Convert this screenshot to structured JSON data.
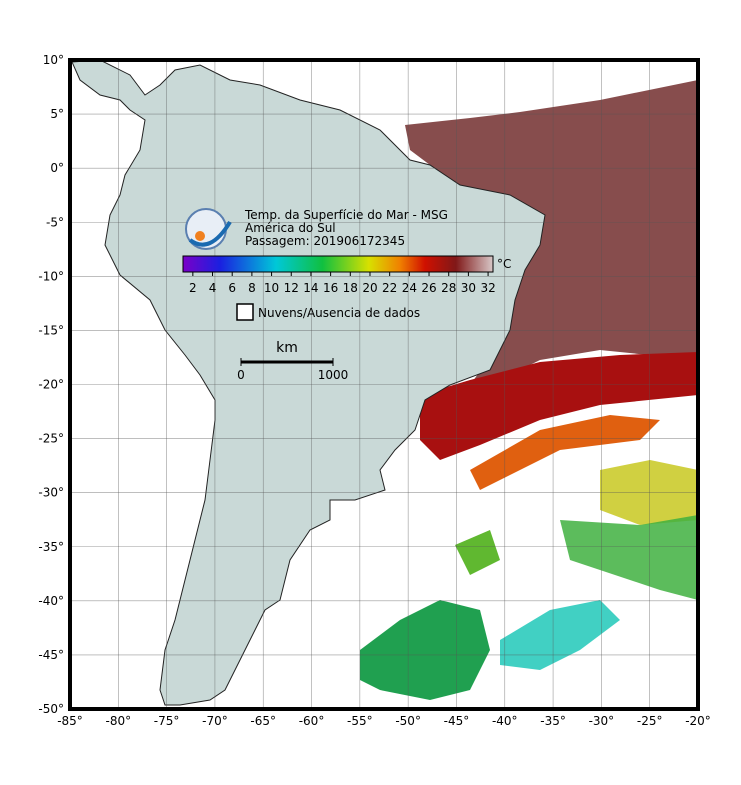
{
  "map": {
    "title_lines": [
      "Temp. da Superfície do Mar - MSG",
      "América do Sul",
      "Passagem: 201906172345"
    ],
    "xlim": [
      -85,
      -20
    ],
    "ylim": [
      -50,
      10
    ],
    "xticks": [
      {
        "value": -85,
        "label": "-85°"
      },
      {
        "value": -80,
        "label": "-80°"
      },
      {
        "value": -75,
        "label": "-75°"
      },
      {
        "value": -70,
        "label": "-70°"
      },
      {
        "value": -65,
        "label": "-65°"
      },
      {
        "value": -60,
        "label": "-60°"
      },
      {
        "value": -55,
        "label": "-55°"
      },
      {
        "value": -50,
        "label": "-50°"
      },
      {
        "value": -45,
        "label": "-45°"
      },
      {
        "value": -40,
        "label": "-40°"
      },
      {
        "value": -35,
        "label": "-35°"
      },
      {
        "value": -30,
        "label": "-30°"
      },
      {
        "value": -25,
        "label": "-25°"
      },
      {
        "value": -20,
        "label": "-20°"
      }
    ],
    "yticks": [
      {
        "value": 10,
        "label": "10°"
      },
      {
        "value": 5,
        "label": "5°"
      },
      {
        "value": 0,
        "label": "0°"
      },
      {
        "value": -5,
        "label": "-5°"
      },
      {
        "value": -10,
        "label": "-10°"
      },
      {
        "value": -15,
        "label": "-15°"
      },
      {
        "value": -20,
        "label": "-20°"
      },
      {
        "value": -25,
        "label": "-25°"
      },
      {
        "value": -30,
        "label": "-30°"
      },
      {
        "value": -35,
        "label": "-35°"
      },
      {
        "value": -40,
        "label": "-40°"
      },
      {
        "value": -45,
        "label": "-45°"
      },
      {
        "value": -50,
        "label": "-50°"
      }
    ],
    "grid": true,
    "colorbar": {
      "unit": "°C",
      "lim": [
        1,
        32.5
      ],
      "ticks": [
        2,
        4,
        6,
        8,
        10,
        12,
        14,
        16,
        18,
        20,
        22,
        24,
        26,
        28,
        30,
        32
      ]
    },
    "legend": "Nuvens/Ausencia de dados",
    "scalebar": {
      "unit": "km",
      "ticks": [
        0,
        1000
      ]
    }
  }
}
